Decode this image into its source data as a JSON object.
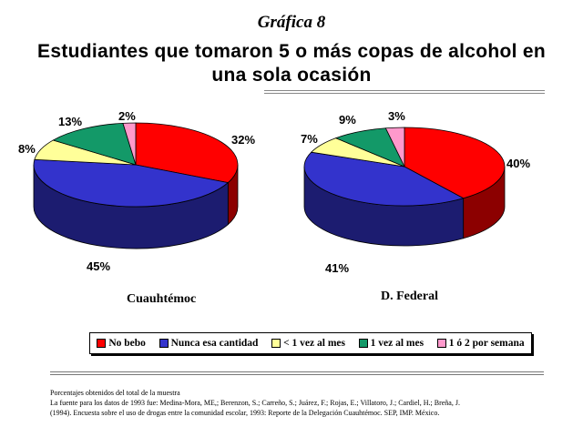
{
  "figure_label": "Gráfica 8",
  "notes": [
    "Porcentajes obtenidos del total de la muestra",
    "La fuente para los datos de 1993 fue: Medina-Mora, ME,; Berenzon, S.; Carreño, S.; Juárez, F.; Rojas, E.; Villatoro, J.; Cardiel, H.; Breña, J.",
    "(1994). Encuesta sobre el uso de drogas entre la comunidad escolar, 1993: Reporte de la Delegación Cuauhtémoc. SEP, IMP. México."
  ],
  "colors": {
    "no_bebo": "#ff0000",
    "nunca": "#3333cc",
    "menos_1": "#ffff99",
    "una_vez": "#139968",
    "uno_dos": "#ff99cc"
  },
  "chart_data": {
    "type": "pie",
    "title": "Estudiantes que tomaron 5 o más copas de alcohol en una sola ocasión",
    "legend": [
      "No bebo",
      "Nunca esa cantidad",
      "< 1 vez al mes",
      "1 vez al mes",
      "1 ó 2 por semana"
    ],
    "legend_position": "bottom",
    "series": [
      {
        "name": "Cuauhtémoc",
        "values": [
          32,
          45,
          8,
          13,
          2
        ],
        "labels": [
          "32%",
          "45%",
          "8%",
          "13%",
          "2%"
        ]
      },
      {
        "name": "D. Federal",
        "values": [
          40,
          41,
          7,
          9,
          3
        ],
        "labels": [
          "40%",
          "41%",
          "7%",
          "9%",
          "3%"
        ]
      }
    ]
  }
}
